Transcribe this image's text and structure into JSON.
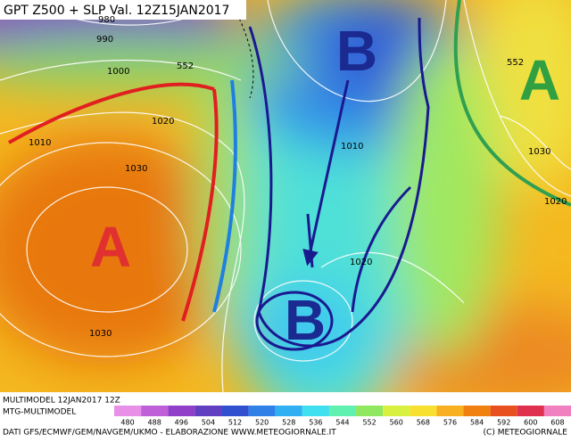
{
  "header": {
    "title": "GPT Z500 + SLP Val. 12Z15JAN2017"
  },
  "systems": [
    "A",
    "B",
    "B",
    "A"
  ],
  "isobar_labels": [
    "980",
    "990",
    "1000",
    "1010",
    "1020",
    "1030",
    "1030",
    "1010",
    "1020",
    "1030",
    "1020",
    "552",
    "552"
  ],
  "colorbar": {
    "ticks": [
      480,
      488,
      496,
      504,
      512,
      520,
      528,
      536,
      544,
      552,
      560,
      568,
      576,
      584,
      592,
      600,
      608
    ],
    "colors": [
      "#e890e8",
      "#c060d8",
      "#9040c8",
      "#6040c0",
      "#3050d0",
      "#3080e8",
      "#30b0f0",
      "#40e0f0",
      "#60f0b0",
      "#90e860",
      "#d8f040",
      "#f8e030",
      "#f8b020",
      "#f08010",
      "#e85020",
      "#e03050",
      "#f080c0"
    ]
  },
  "footer": {
    "line1": "MULTIMODEL 12JAN2017 12Z",
    "line2": "MTG-MULTIMODEL",
    "credits": "DATI GFS/ECMWF/GEM/NAVGEM/UKMO - ELABORAZIONE WWW.METEOGIORNALE.IT",
    "copyright": "(C) METEOGIORNALE"
  }
}
